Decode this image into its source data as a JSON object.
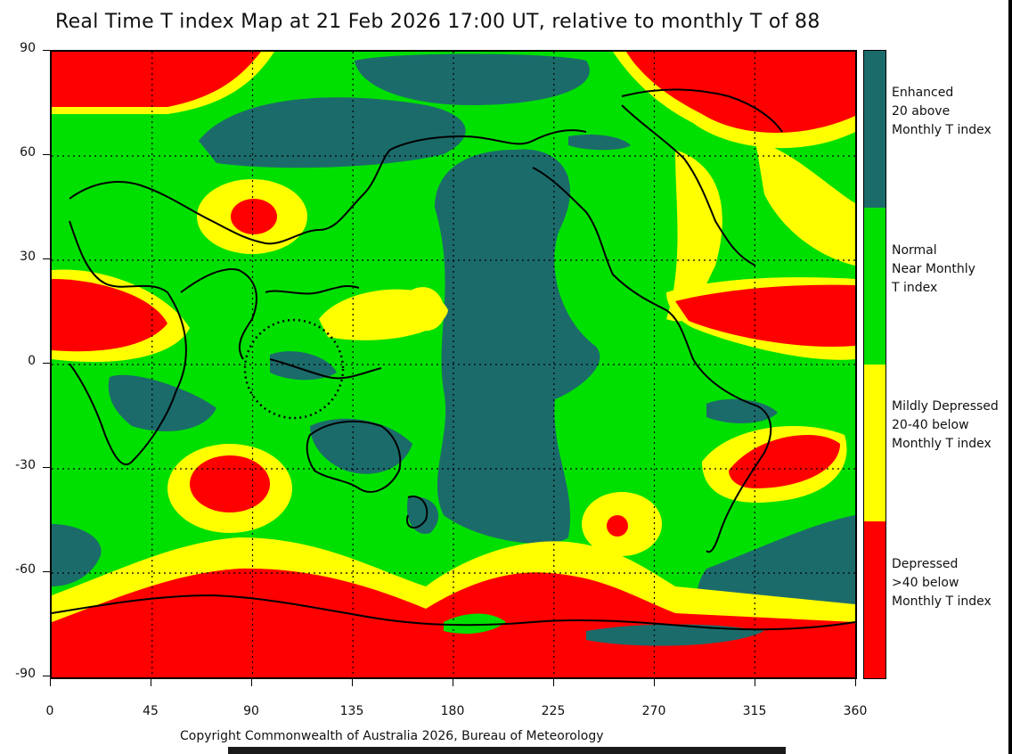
{
  "title": "Real Time T index Map at 21 Feb 2026 17:00 UT, relative to monthly T of 88",
  "copyright": "Copyright Commonwealth of Australia 2026, Bureau of Meteorology",
  "colors": {
    "enhanced": "#1c6b6b",
    "normal": "#00e000",
    "mildly_depressed": "#ffff00",
    "depressed": "#ff0000",
    "grid": "#000000"
  },
  "axes": {
    "x_ticks": [
      "0",
      "45",
      "90",
      "135",
      "180",
      "225",
      "270",
      "315",
      "360"
    ],
    "y_ticks": [
      "90",
      "60",
      "30",
      "0",
      "-30",
      "-60",
      "-90"
    ]
  },
  "legend": [
    {
      "label": "Enhanced\n20 above\nMonthly T index",
      "color_key": "enhanced"
    },
    {
      "label": "Normal\nNear Monthly\nT index",
      "color_key": "normal"
    },
    {
      "label": "Mildly Depressed\n20-40 below\nMonthly T index",
      "color_key": "mildly_depressed"
    },
    {
      "label": "Depressed\n>40 below\nMonthly T index",
      "color_key": "depressed"
    }
  ]
}
